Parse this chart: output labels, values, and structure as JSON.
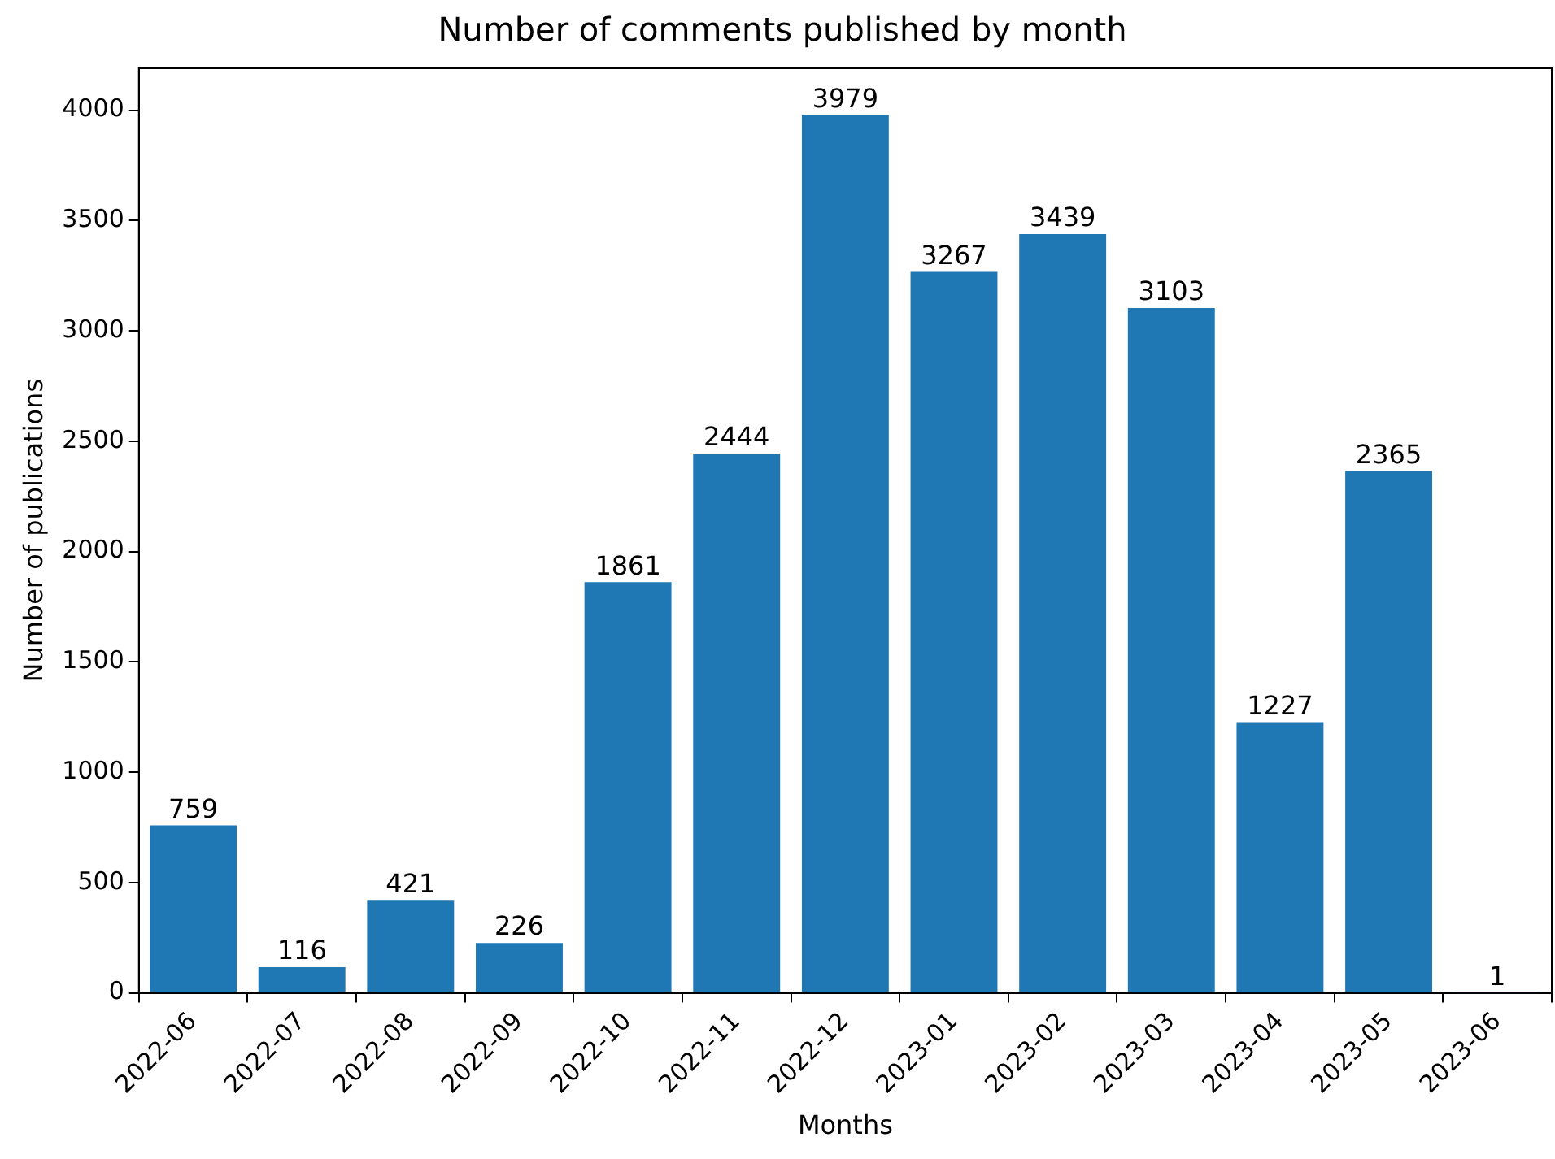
{
  "chart_data": {
    "type": "bar",
    "title": "Number of comments published by month",
    "xlabel": "Months",
    "ylabel": "Number of publications",
    "categories": [
      "2022-06",
      "2022-07",
      "2022-08",
      "2022-09",
      "2022-10",
      "2022-11",
      "2022-12",
      "2023-01",
      "2023-02",
      "2023-03",
      "2023-04",
      "2023-05",
      "2023-06"
    ],
    "values": [
      759,
      116,
      421,
      226,
      1861,
      2444,
      3979,
      3267,
      3439,
      3103,
      1227,
      2365,
      1
    ],
    "color": "#1f77b4",
    "ylim": [
      0,
      4190
    ],
    "yticks": [
      0,
      500,
      1000,
      1500,
      2000,
      2500,
      3000,
      3500,
      4000
    ],
    "grid": false,
    "data_labels": true
  }
}
